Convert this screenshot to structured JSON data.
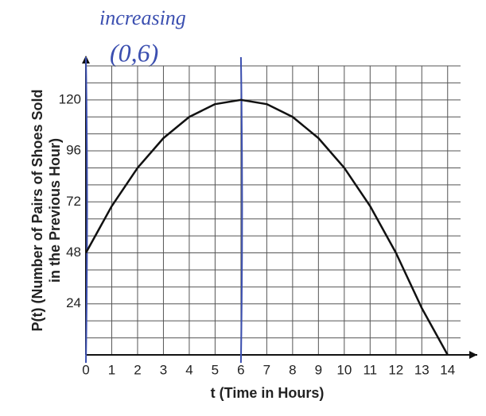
{
  "chart_data": {
    "type": "line",
    "x_label": "t (Time in Hours)",
    "y_label_lines": [
      "P(t) (Number of Pairs of Shoes Sold",
      "in the Previous Hour)"
    ],
    "annotations": [
      "increasing",
      "(0,6)"
    ],
    "x": [
      0,
      1,
      2,
      3,
      4,
      5,
      6,
      7,
      8,
      9,
      10,
      11,
      12,
      13,
      14
    ],
    "series": [
      {
        "color": "#111111",
        "values": [
          48,
          70,
          88,
          102,
          112,
          118,
          120,
          118,
          112,
          102,
          88,
          70,
          48,
          22,
          0
        ]
      }
    ],
    "xlim": [
      0,
      14.5
    ],
    "ylim": [
      0,
      136
    ],
    "xticks": [
      0,
      1,
      2,
      3,
      4,
      5,
      6,
      7,
      8,
      9,
      10,
      11,
      12,
      13,
      14
    ],
    "yticks": [
      24,
      48,
      72,
      96,
      120
    ],
    "ygrid": [
      8,
      16,
      24,
      32,
      40,
      48,
      56,
      64,
      72,
      80,
      88,
      96,
      104,
      112,
      120,
      128,
      136
    ],
    "grid": true,
    "marked_x": [
      0,
      6
    ],
    "marked_color": "#3b4fb0"
  }
}
